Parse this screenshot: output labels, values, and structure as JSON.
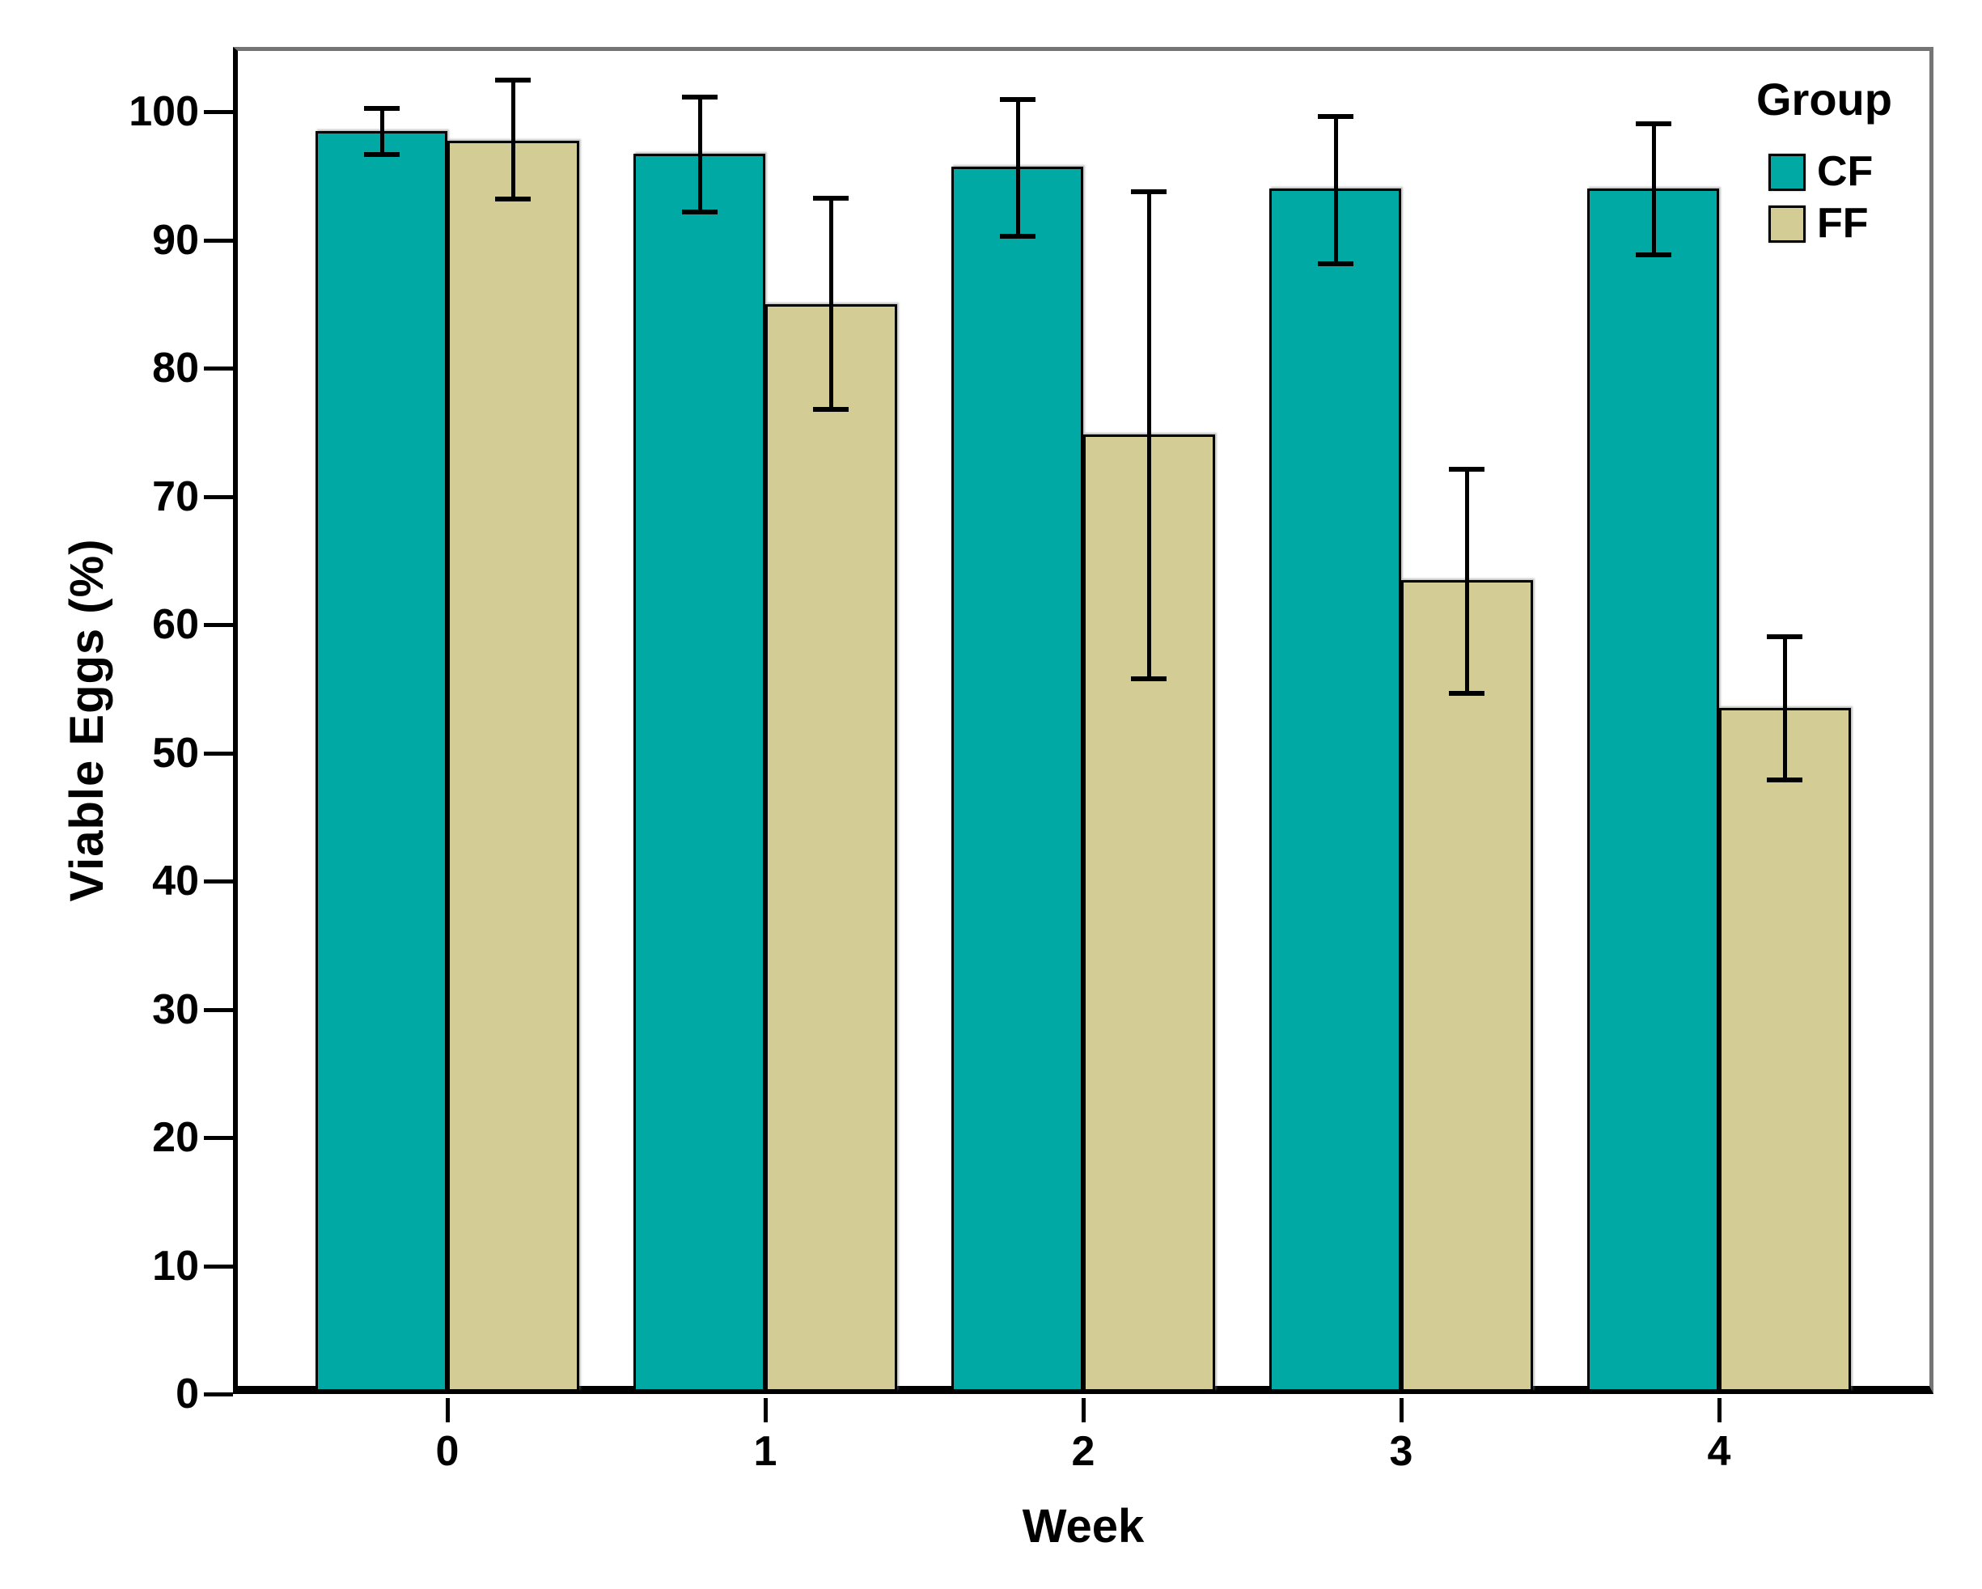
{
  "chart_data": {
    "type": "bar",
    "title": "",
    "xlabel": "Week",
    "ylabel": "Viable Eggs (%)",
    "legend_title": "Group",
    "legend_position": "inside-top-right",
    "grid": false,
    "categories": [
      "0",
      "1",
      "2",
      "3",
      "4"
    ],
    "ylim": [
      0,
      100
    ],
    "yticks": [
      0,
      10,
      20,
      30,
      40,
      50,
      60,
      70,
      80,
      90,
      100
    ],
    "series": [
      {
        "name": "CF",
        "color": "#00A9A4",
        "values": [
          98.5,
          96.7,
          95.7,
          94.0,
          94.0
        ],
        "error_low": [
          96.6,
          92.1,
          90.2,
          88.1,
          88.8
        ],
        "error_high": [
          100.3,
          101.2,
          101.0,
          99.7,
          99.1
        ]
      },
      {
        "name": "FF",
        "color": "#D3CC94",
        "values": [
          97.7,
          85.0,
          74.8,
          63.5,
          53.5
        ],
        "error_low": [
          93.1,
          76.7,
          55.7,
          54.6,
          47.8
        ],
        "error_high": [
          102.5,
          93.3,
          93.8,
          72.2,
          59.1
        ]
      }
    ],
    "colors": {
      "bar_outline": "#000000",
      "error_bar": "#000000",
      "frame_gray": "#757575",
      "axis_black": "#000000",
      "background": "#ffffff"
    }
  }
}
